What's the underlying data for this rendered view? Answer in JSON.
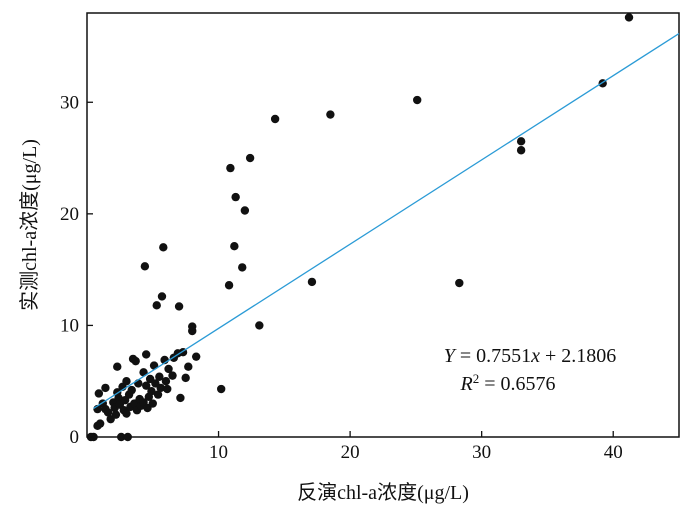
{
  "chart_data": {
    "type": "scatter",
    "xlabel": "反演chl-a浓度(μg/L)",
    "ylabel": "实测chl-a浓度(μg/L)",
    "xlim": [
      0,
      45
    ],
    "ylim": [
      0,
      38
    ],
    "xticks": [
      10,
      20,
      30,
      40
    ],
    "yticks": [
      0,
      10,
      20,
      30
    ],
    "grid": false,
    "colors": {
      "points": "#111111",
      "fit_line": "#2b9bd6",
      "axes": "#111111"
    },
    "fit": {
      "slope": 0.7551,
      "intercept": 2.1806,
      "equation_text": "Y = 0.7551x + 2.1806",
      "r2_text": "R2 = 0.6576"
    },
    "points": [
      {
        "x": 0.3,
        "y": 0.0
      },
      {
        "x": 0.5,
        "y": 0.0
      },
      {
        "x": 0.8,
        "y": 1.0
      },
      {
        "x": 0.8,
        "y": 2.5
      },
      {
        "x": 0.9,
        "y": 3.9
      },
      {
        "x": 1.0,
        "y": 1.2
      },
      {
        "x": 1.2,
        "y": 3.0
      },
      {
        "x": 1.4,
        "y": 4.4
      },
      {
        "x": 1.4,
        "y": 2.5
      },
      {
        "x": 1.6,
        "y": 2.2
      },
      {
        "x": 1.8,
        "y": 1.6
      },
      {
        "x": 2.0,
        "y": 3.1
      },
      {
        "x": 2.1,
        "y": 2.6
      },
      {
        "x": 2.2,
        "y": 2.0
      },
      {
        "x": 2.3,
        "y": 6.3
      },
      {
        "x": 2.3,
        "y": 4.0
      },
      {
        "x": 2.4,
        "y": 3.5
      },
      {
        "x": 2.5,
        "y": 2.9
      },
      {
        "x": 2.6,
        "y": 0.0
      },
      {
        "x": 2.7,
        "y": 4.5
      },
      {
        "x": 2.8,
        "y": 2.4
      },
      {
        "x": 2.9,
        "y": 3.3
      },
      {
        "x": 3.0,
        "y": 2.1
      },
      {
        "x": 3.0,
        "y": 5.0
      },
      {
        "x": 3.1,
        "y": 0.0
      },
      {
        "x": 3.2,
        "y": 3.8
      },
      {
        "x": 3.3,
        "y": 2.7
      },
      {
        "x": 3.4,
        "y": 4.2
      },
      {
        "x": 3.5,
        "y": 7.0
      },
      {
        "x": 3.6,
        "y": 3.0
      },
      {
        "x": 3.7,
        "y": 6.8
      },
      {
        "x": 3.8,
        "y": 2.4
      },
      {
        "x": 3.9,
        "y": 4.8
      },
      {
        "x": 4.0,
        "y": 3.4
      },
      {
        "x": 4.1,
        "y": 2.8
      },
      {
        "x": 4.3,
        "y": 5.8
      },
      {
        "x": 4.3,
        "y": 3.1
      },
      {
        "x": 4.4,
        "y": 15.3
      },
      {
        "x": 4.5,
        "y": 7.4
      },
      {
        "x": 4.5,
        "y": 4.6
      },
      {
        "x": 4.6,
        "y": 2.6
      },
      {
        "x": 4.7,
        "y": 3.6
      },
      {
        "x": 4.8,
        "y": 5.2
      },
      {
        "x": 4.9,
        "y": 4.1
      },
      {
        "x": 5.0,
        "y": 3.0
      },
      {
        "x": 5.1,
        "y": 6.4
      },
      {
        "x": 5.2,
        "y": 4.8
      },
      {
        "x": 5.3,
        "y": 11.8
      },
      {
        "x": 5.4,
        "y": 3.8
      },
      {
        "x": 5.5,
        "y": 5.4
      },
      {
        "x": 5.6,
        "y": 4.4
      },
      {
        "x": 5.7,
        "y": 12.6
      },
      {
        "x": 5.8,
        "y": 17.0
      },
      {
        "x": 5.9,
        "y": 6.9
      },
      {
        "x": 6.0,
        "y": 5.0
      },
      {
        "x": 6.1,
        "y": 4.3
      },
      {
        "x": 6.2,
        "y": 6.1
      },
      {
        "x": 6.5,
        "y": 5.5
      },
      {
        "x": 6.6,
        "y": 7.1
      },
      {
        "x": 6.9,
        "y": 7.5
      },
      {
        "x": 7.0,
        "y": 11.7
      },
      {
        "x": 7.1,
        "y": 3.5
      },
      {
        "x": 7.3,
        "y": 7.6
      },
      {
        "x": 7.5,
        "y": 5.3
      },
      {
        "x": 7.7,
        "y": 6.3
      },
      {
        "x": 8.0,
        "y": 9.5
      },
      {
        "x": 8.0,
        "y": 9.9
      },
      {
        "x": 8.3,
        "y": 7.2
      },
      {
        "x": 10.2,
        "y": 4.3
      },
      {
        "x": 10.8,
        "y": 13.6
      },
      {
        "x": 10.9,
        "y": 24.1
      },
      {
        "x": 11.2,
        "y": 17.1
      },
      {
        "x": 11.3,
        "y": 21.5
      },
      {
        "x": 11.8,
        "y": 15.2
      },
      {
        "x": 12.0,
        "y": 20.3
      },
      {
        "x": 12.4,
        "y": 25.0
      },
      {
        "x": 13.1,
        "y": 10.0
      },
      {
        "x": 14.3,
        "y": 28.5
      },
      {
        "x": 17.1,
        "y": 13.9
      },
      {
        "x": 18.5,
        "y": 28.9
      },
      {
        "x": 25.1,
        "y": 30.2
      },
      {
        "x": 28.3,
        "y": 13.8
      },
      {
        "x": 33.0,
        "y": 26.5
      },
      {
        "x": 33.0,
        "y": 25.7
      },
      {
        "x": 39.2,
        "y": 31.7
      },
      {
        "x": 41.2,
        "y": 37.6
      }
    ]
  }
}
